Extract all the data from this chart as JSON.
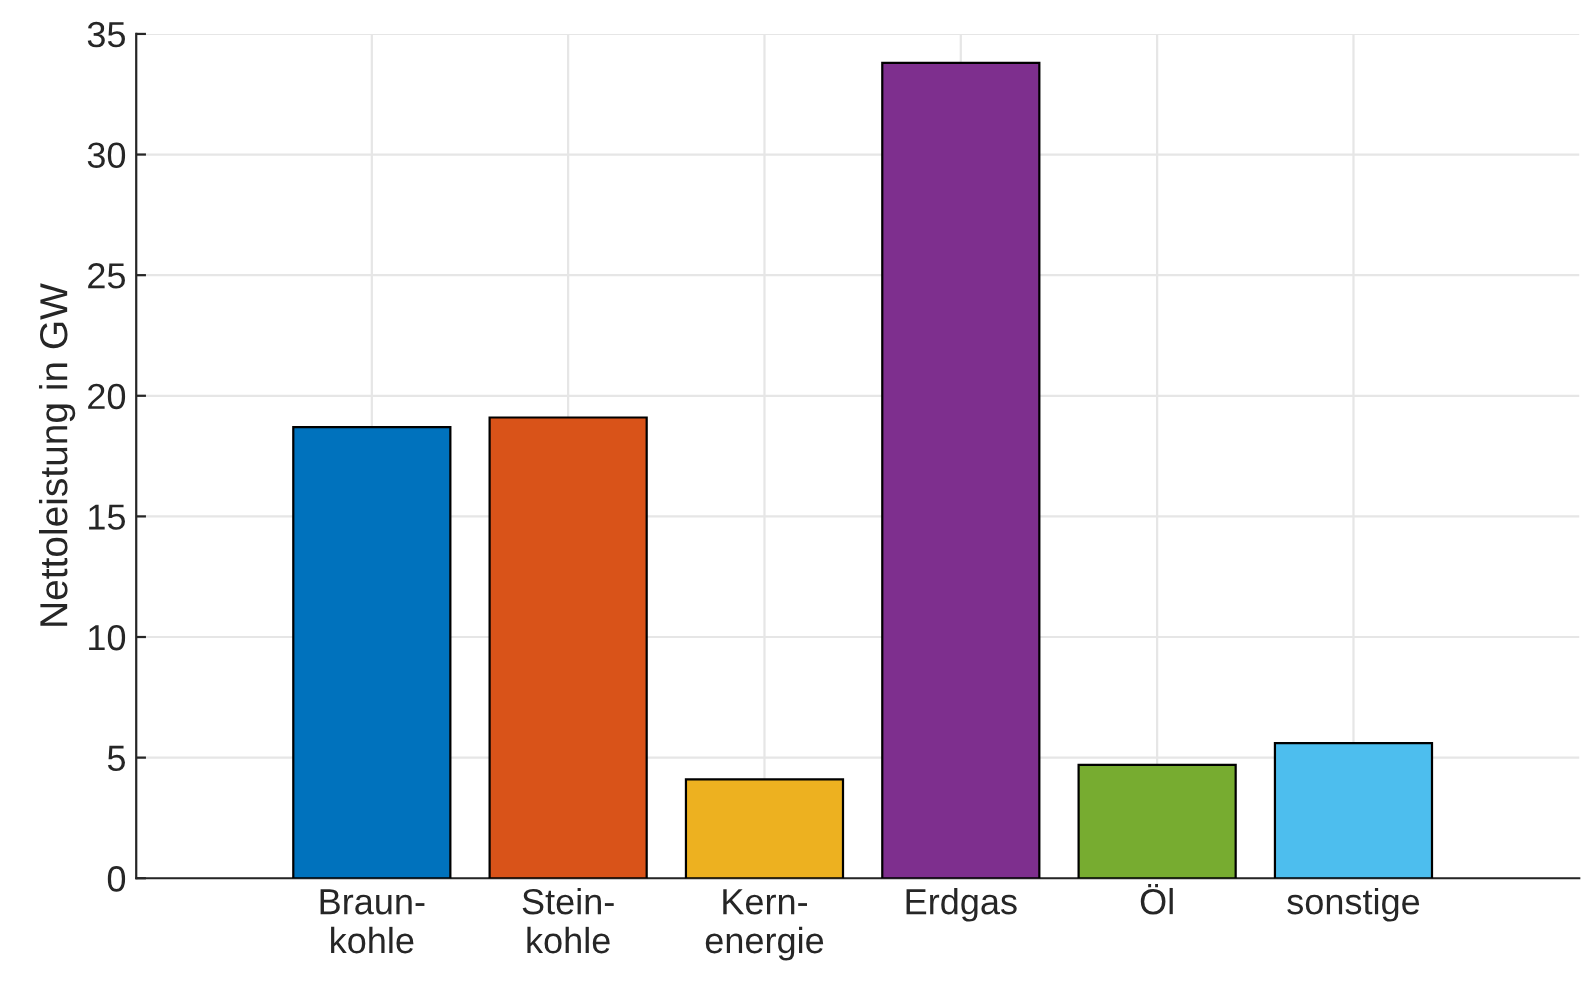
{
  "chart_data": {
    "type": "bar",
    "ylabel": "Nettoleistung in GW",
    "categories": [
      "Braun-\nkohle",
      "Stein-\nkohle",
      "Kern-\nenergie",
      "Erdgas",
      "Öl",
      "sonstige"
    ],
    "values": [
      18.7,
      19.1,
      4.1,
      33.8,
      4.7,
      5.6
    ],
    "colors": [
      "#0072bd",
      "#d95319",
      "#edb120",
      "#7e2f8e",
      "#77ac30",
      "#4dbeee"
    ],
    "ylim": [
      0,
      35
    ],
    "yticks": [
      0,
      5,
      10,
      15,
      20,
      25,
      30,
      35
    ],
    "grid": true
  }
}
